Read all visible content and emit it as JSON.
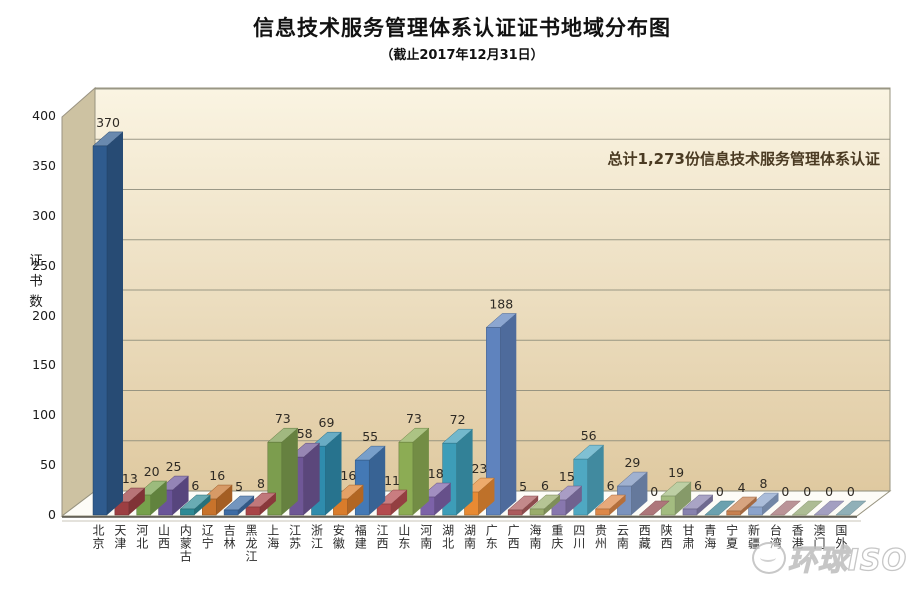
{
  "title": "信息技术服务管理体系认证证书地域分布图",
  "subtitle": "（截止2017年12月31日）",
  "annotation": "总计1,273份信息技术服务管理体系认证",
  "watermark": {
    "text": "环球ISO"
  },
  "chart_data": {
    "type": "bar",
    "style": "3d",
    "title": "信息技术服务管理体系认证证书地域分布图",
    "subtitle": "（截止2017年12月31日）",
    "xlabel": "",
    "ylabel": "证书数",
    "ylim": [
      0,
      400
    ],
    "yticks": [
      0,
      50,
      100,
      150,
      200,
      250,
      300,
      350,
      400
    ],
    "grid": true,
    "legend": false,
    "total": 1273,
    "categories": [
      "北京",
      "天津",
      "河北",
      "山西",
      "内蒙古",
      "辽宁",
      "吉林",
      "黑龙江",
      "上海",
      "江苏",
      "浙江",
      "安徽",
      "福建",
      "江西",
      "山东",
      "河南",
      "湖北",
      "湖南",
      "广东",
      "广西",
      "海南",
      "重庆",
      "四川",
      "贵州",
      "云南",
      "西藏",
      "陕西",
      "甘肃",
      "青海",
      "宁夏",
      "新疆",
      "台湾",
      "香港",
      "澳门",
      "国外"
    ],
    "values": [
      370,
      13,
      20,
      25,
      6,
      16,
      5,
      8,
      73,
      58,
      69,
      16,
      55,
      11,
      73,
      18,
      72,
      23,
      188,
      5,
      6,
      15,
      56,
      6,
      29,
      0,
      19,
      6,
      0,
      4,
      8,
      0,
      0,
      0,
      0
    ],
    "bar_colors": [
      "#2F5B8E",
      "#9C3E42",
      "#76A04B",
      "#6A5499",
      "#2E8A96",
      "#C8732B",
      "#3D6CA5",
      "#A84448",
      "#7C9D4E",
      "#6F5796",
      "#2F8CAD",
      "#D97C2B",
      "#4479B5",
      "#B44B4F",
      "#8CAC54",
      "#7C62A8",
      "#3D9DB8",
      "#E88A33",
      "#5F83BE",
      "#AC5B5E",
      "#9AAD6B",
      "#8877AE",
      "#4FA8C2",
      "#DD8748",
      "#7B93BE",
      "#A66A6E",
      "#A3BC80",
      "#8781AE",
      "#5E99A8",
      "#C8804F",
      "#8BA3CB",
      "#B48A8E",
      "#A6B68B",
      "#9B97BC",
      "#86A9B2"
    ],
    "wall_color_top": "#FAF4E2",
    "wall_color_bottom": "#DFC9A0",
    "side_wall_color": "#CDC2A2",
    "floor_color": "#FDFCF7",
    "gridline_color": "#8B8B7A",
    "label_color": "#2E2A24"
  }
}
